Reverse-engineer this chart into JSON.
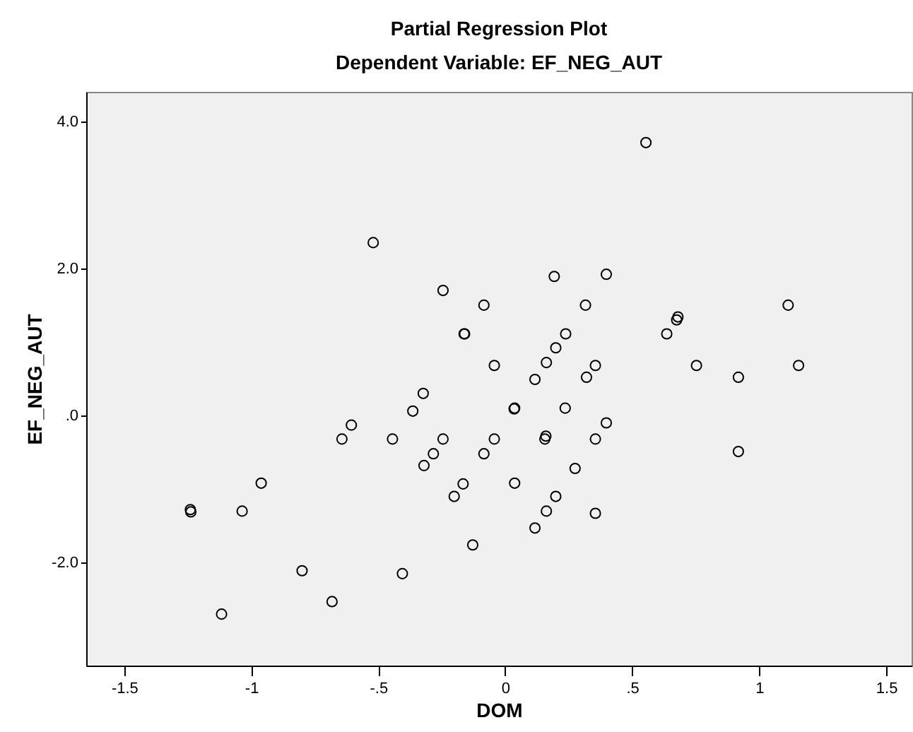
{
  "chart_data": {
    "type": "scatter",
    "title": "Partial Regression Plot",
    "subtitle": "Dependent Variable: EF_NEG_AUT",
    "xlabel": "DOM",
    "ylabel": "EF_NEG_AUT",
    "x": [
      -0.52,
      -0.245,
      -0.084,
      -0.162,
      -0.16,
      -0.043,
      -0.323,
      0.554,
      0.193,
      0.398,
      0.316,
      1.114,
      0.68,
      0.675,
      0.636,
      0.238,
      0.199,
      0.162,
      0.355,
      0.753,
      1.155,
      0.117,
      0.32,
      0.918,
      0.035,
      0.037,
      0.236,
      0.398,
      -0.043,
      0.16,
      0.156,
      0.355,
      -0.084,
      0.918,
      0.275,
      0.037,
      0.199,
      0.162,
      0.355,
      0.117,
      -0.364,
      -0.606,
      -0.643,
      -0.444,
      -0.245,
      -0.283,
      -0.32,
      -0.166,
      -0.201,
      -0.961,
      -1.238,
      -1.24,
      -1.036,
      -0.128,
      -0.8,
      -0.405,
      -0.682,
      -1.117
    ],
    "series": [
      {
        "color": "#000000",
        "values": [
          2.35,
          1.7,
          1.5,
          1.11,
          1.11,
          0.68,
          0.3,
          3.71,
          1.89,
          1.92,
          1.5,
          1.5,
          1.34,
          1.3,
          1.11,
          1.11,
          0.92,
          0.72,
          0.68,
          0.68,
          0.68,
          0.49,
          0.52,
          0.52,
          0.09,
          0.1,
          0.1,
          -0.1,
          -0.32,
          -0.28,
          -0.32,
          -0.32,
          -0.52,
          -0.49,
          -0.72,
          -0.92,
          -1.1,
          -1.3,
          -1.33,
          -1.53,
          0.06,
          -0.13,
          -0.32,
          -0.32,
          -0.32,
          -0.52,
          -0.68,
          -0.93,
          -1.1,
          -0.92,
          -1.31,
          -1.28,
          -1.3,
          -1.76,
          -2.11,
          -2.15,
          -2.53,
          -2.7
        ]
      }
    ],
    "xlim": [
      -1.65,
      1.6
    ],
    "ylim": [
      -3.4,
      4.4
    ],
    "xticks": [
      {
        "value": -1.5,
        "label": "-1.5"
      },
      {
        "value": -1,
        "label": "-1"
      },
      {
        "value": -0.5,
        "label": "-.5"
      },
      {
        "value": 0,
        "label": "0"
      },
      {
        "value": 0.5,
        "label": ".5"
      },
      {
        "value": 1,
        "label": "1"
      },
      {
        "value": 1.5,
        "label": "1.5"
      }
    ],
    "yticks": [
      {
        "value": -2,
        "label": "-2.0"
      },
      {
        "value": 0,
        "label": ".0"
      },
      {
        "value": 2,
        "label": "2.0"
      },
      {
        "value": 4,
        "label": "4.0"
      }
    ],
    "marker": "circle",
    "grid": false
  }
}
